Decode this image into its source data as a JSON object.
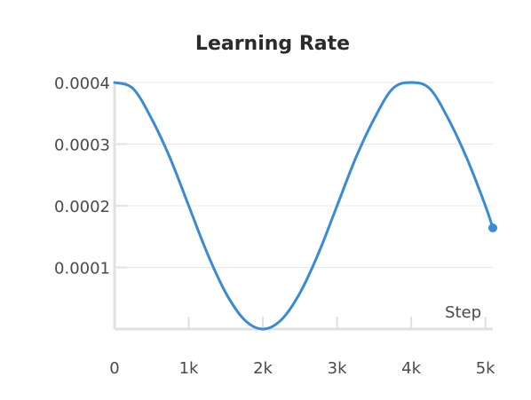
{
  "chart_data": {
    "type": "line",
    "title": "Learning Rate",
    "xlabel": "Step",
    "ylabel": "",
    "xlim": [
      0,
      5100
    ],
    "ylim": [
      0,
      0.0004
    ],
    "x_ticks": [
      0,
      1000,
      2000,
      3000,
      4000,
      5000
    ],
    "x_tick_labels": [
      "0",
      "1k",
      "2k",
      "3k",
      "4k",
      "5k"
    ],
    "y_ticks": [
      0.0001,
      0.0002,
      0.0003,
      0.0004
    ],
    "y_tick_labels": [
      "0.0001",
      "0.0002",
      "0.0003",
      "0.0004"
    ],
    "grid": "horizontal",
    "series": [
      {
        "color": "#3a8bd6",
        "x": [
          0,
          250,
          500,
          750,
          1000,
          1250,
          1500,
          1750,
          2000,
          2250,
          2500,
          2750,
          3000,
          3250,
          3500,
          3750,
          4000,
          4250,
          4500,
          4750,
          5000,
          5100
        ],
        "y": [
          0.0004,
          0.00039,
          0.000341,
          0.000277,
          0.0002,
          0.000123,
          5.86e-05,
          1.52e-05,
          0,
          1.52e-05,
          5.86e-05,
          0.000123,
          0.0002,
          0.000277,
          0.000341,
          0.00039,
          0.0004,
          0.00039,
          0.000341,
          0.000277,
          0.0002,
          0.000164
        ],
        "end_marker": true
      }
    ]
  }
}
